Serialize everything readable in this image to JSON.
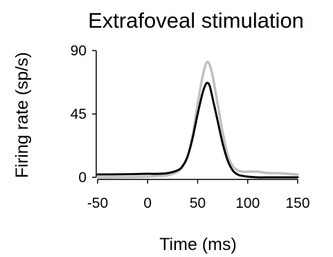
{
  "chart_data": {
    "type": "line",
    "title": "Extrafoveal stimulation",
    "xlabel": "Time (ms)",
    "ylabel": "Firing rate (sp/s)",
    "xlim": [
      -50,
      150
    ],
    "ylim": [
      0,
      90
    ],
    "xticks": [
      -50,
      0,
      50,
      100,
      150
    ],
    "yticks": [
      0,
      45,
      90
    ],
    "xtick_labels": [
      "-50",
      "0",
      "50",
      "100",
      "150"
    ],
    "ytick_labels": [
      "0",
      "45",
      "90"
    ],
    "grid": false,
    "series": [
      {
        "color": "#000000",
        "x": [
          -50,
          -20,
          0,
          10,
          20,
          30,
          35,
          40,
          45,
          50,
          55,
          58,
          60,
          62,
          65,
          70,
          75,
          80,
          85,
          90,
          95,
          100,
          110,
          120,
          130,
          150
        ],
        "y": [
          2,
          2.2,
          2.5,
          2.5,
          3,
          5,
          8,
          15,
          28,
          45,
          60,
          66,
          67,
          65,
          56,
          40,
          24,
          12,
          5,
          2,
          1,
          0.5,
          0,
          0,
          0,
          0
        ]
      },
      {
        "color": "#c0c0c0",
        "x": [
          -50,
          -20,
          0,
          10,
          20,
          30,
          35,
          40,
          45,
          50,
          55,
          58,
          60,
          62,
          65,
          70,
          75,
          80,
          85,
          90,
          95,
          100,
          110,
          120,
          130,
          150
        ],
        "y": [
          0,
          0.2,
          0.5,
          1,
          1.5,
          4,
          8,
          15,
          30,
          52,
          72,
          80,
          82,
          80,
          72,
          52,
          32,
          16,
          8,
          5,
          4,
          4,
          4,
          3,
          3,
          2
        ]
      }
    ]
  }
}
